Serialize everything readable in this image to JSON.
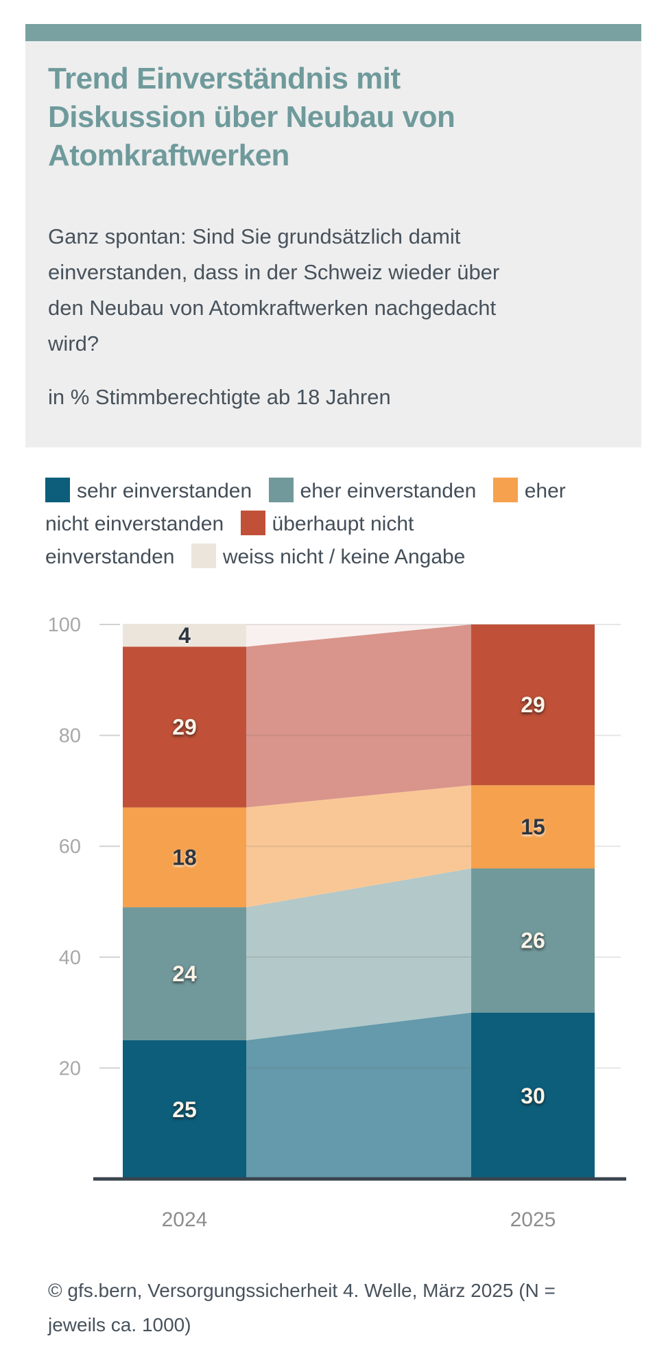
{
  "header": {
    "title_lines": [
      "Trend Einverständnis mit",
      "Diskussion über Neubau von",
      "Atomkraftwerken"
    ],
    "question_lines": [
      "Ganz spontan: Sind Sie grundsätzlich damit",
      "einverstanden, dass in der Schweiz wieder über",
      "den Neubau von Atomkraftwerken nachgedacht",
      "wird?"
    ],
    "unit_note": "in % Stimmberechtigte ab 18 Jahren"
  },
  "legend": {
    "items": [
      {
        "label": "sehr einverstanden",
        "color": "#0c5e7b"
      },
      {
        "label": "eher einverstanden",
        "color": "#71999b"
      },
      {
        "label": "eher\nnicht einverstanden",
        "color": "#f5a14e"
      },
      {
        "label": "überhaupt nicht\neinverstanden",
        "color": "#c05138"
      },
      {
        "label": "weiss nicht / keine Angabe",
        "color": "#ece5db"
      }
    ]
  },
  "chart_data": {
    "type": "bar",
    "stacked": true,
    "categories": [
      "2024",
      "2025"
    ],
    "series": [
      {
        "name": "sehr einverstanden",
        "color": "#0c5e7b",
        "transition_color": "#649aab",
        "label_style": "light",
        "values": [
          25,
          30
        ]
      },
      {
        "name": "eher einverstanden",
        "color": "#71999b",
        "transition_color": "#b2c8c9",
        "label_style": "light",
        "values": [
          24,
          26
        ]
      },
      {
        "name": "eher nicht einverstanden",
        "color": "#f5a14e",
        "transition_color": "#f9c795",
        "label_style": "dark",
        "values": [
          18,
          15
        ]
      },
      {
        "name": "überhaupt nicht einverstanden",
        "color": "#c05138",
        "transition_color": "#d9948b",
        "label_style": "light",
        "values": [
          29,
          29
        ]
      },
      {
        "name": "weiss nicht / keine Angabe",
        "color": "#ece5db",
        "transition_color": "#f8f1ef",
        "label_style": "dark",
        "values": [
          4,
          0
        ]
      }
    ],
    "title": "Trend Einverständnis mit Diskussion über Neubau von Atomkraftwerken",
    "xlabel": "",
    "ylabel": "in % Stimmberechtigte ab 18 Jahren",
    "ylim": [
      0,
      100
    ],
    "yticks": [
      20,
      40,
      60,
      80,
      100
    ],
    "grid": true,
    "legend_position": "top"
  },
  "style": {
    "accent_bar_color": "#7aa1a1",
    "header_bg": "#eeeeee",
    "title_color": "#6f9a9b",
    "body_text_color": "#47525c",
    "gridline_color": "#dcdcdc",
    "axis_line_color": "#3a444d",
    "tick_label_color": "#a8a8a8",
    "x_label_color": "#8d8d8d"
  },
  "footer": {
    "source_lines": [
      "© gfs.bern, Versorgungssicherheit 4. Welle, März 2025 (N =",
      "jeweils ca. 1000)"
    ]
  }
}
